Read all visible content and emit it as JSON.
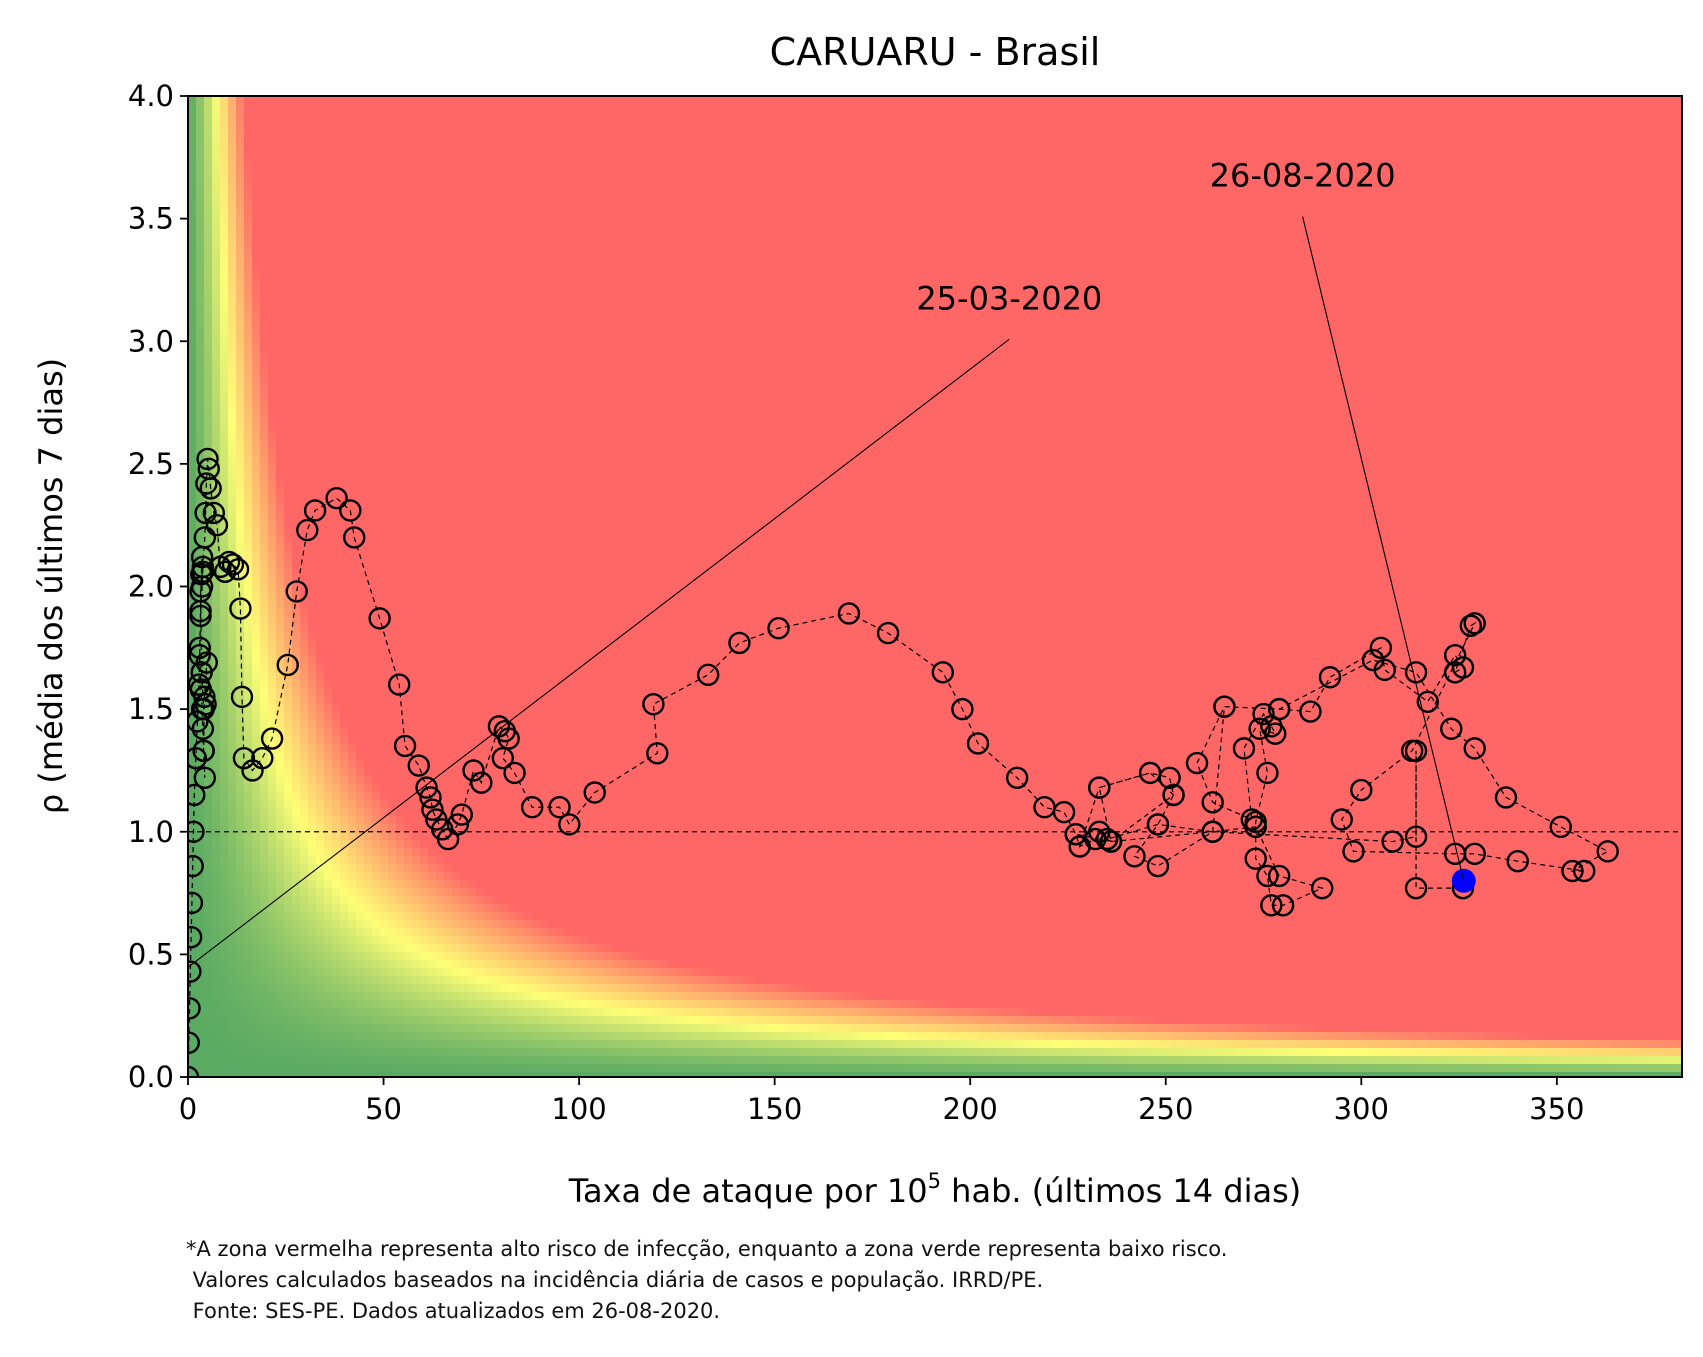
{
  "chart_data": {
    "type": "scatter",
    "title": "CARUARU - Brasil",
    "xlabel": {
      "pre": "Taxa de ataque por 10",
      "sup": "5",
      "post": " hab. (últimos 14 dias)"
    },
    "ylabel": "ρ (média dos últimos 7 dias)",
    "xlim": [
      0,
      382
    ],
    "ylim": [
      0,
      4
    ],
    "xticks": [
      0,
      50,
      100,
      150,
      200,
      250,
      300,
      350
    ],
    "yticks": [
      0.0,
      0.5,
      1.0,
      1.5,
      2.0,
      2.5,
      3.0,
      3.5,
      4.0
    ],
    "reference_line_y": 1.0,
    "colors": {
      "high_risk": "#ff6666",
      "mid": "#ffff77",
      "low_risk": "#5aaa63",
      "marker_edge": "#000000",
      "current": "#0000ff"
    },
    "annotations": [
      {
        "text": "25-03-2020",
        "point": [
          0.2,
          0.45
        ],
        "label_at": [
          210,
          3.0
        ]
      },
      {
        "text": "26-08-2020",
        "point": [
          326.2,
          0.8
        ],
        "label_at": [
          285,
          3.5
        ]
      }
    ],
    "current_point": {
      "date": "26-08-2020",
      "x": 326.2,
      "y": 0.8
    },
    "series": [
      {
        "values": [
          [
            0,
            0.0
          ],
          [
            0.2,
            0.14
          ],
          [
            0.4,
            0.28
          ],
          [
            0.6,
            0.43
          ],
          [
            0.8,
            0.57
          ],
          [
            1.0,
            0.71
          ],
          [
            1.2,
            0.86
          ],
          [
            1.4,
            1.0
          ],
          [
            1.6,
            1.15
          ],
          [
            2.0,
            1.3
          ],
          [
            2.4,
            1.45
          ],
          [
            2.8,
            1.6
          ],
          [
            3.0,
            1.75
          ],
          [
            3.2,
            1.9
          ],
          [
            3.4,
            2.05
          ],
          [
            3.6,
            2.12
          ],
          [
            3.8,
            2.06
          ],
          [
            3.6,
            2.0
          ],
          [
            3.2,
            1.88
          ],
          [
            3.0,
            1.72
          ],
          [
            3.3,
            1.58
          ],
          [
            3.6,
            1.5
          ],
          [
            3.8,
            1.42
          ],
          [
            4.0,
            1.33
          ],
          [
            4.3,
            1.22
          ],
          [
            4.0,
            1.33
          ],
          [
            4.2,
            1.55
          ],
          [
            4.8,
            1.69
          ],
          [
            4.5,
            1.52
          ],
          [
            4.0,
            1.5
          ],
          [
            3.5,
            1.65
          ],
          [
            3.2,
            1.98
          ],
          [
            3.8,
            2.08
          ],
          [
            4.3,
            2.2
          ],
          [
            4.5,
            2.3
          ],
          [
            4.7,
            2.42
          ],
          [
            5.0,
            2.52
          ],
          [
            5.3,
            2.48
          ],
          [
            5.8,
            2.4
          ],
          [
            6.6,
            2.3
          ],
          [
            7.4,
            2.25
          ],
          [
            8.3,
            2.08
          ],
          [
            9.5,
            2.06
          ],
          [
            10.5,
            2.1
          ],
          [
            11.5,
            2.09
          ],
          [
            12.8,
            2.07
          ],
          [
            13.4,
            1.91
          ],
          [
            13.8,
            1.55
          ],
          [
            14.3,
            1.3
          ],
          [
            16.5,
            1.25
          ],
          [
            19.0,
            1.3
          ],
          [
            21.5,
            1.38
          ],
          [
            25.5,
            1.68
          ],
          [
            27.8,
            1.98
          ],
          [
            30.5,
            2.23
          ],
          [
            32.5,
            2.31
          ],
          [
            38.0,
            2.36
          ],
          [
            41.5,
            2.31
          ],
          [
            42.5,
            2.2
          ],
          [
            49.0,
            1.87
          ],
          [
            54.0,
            1.6
          ],
          [
            55.5,
            1.35
          ],
          [
            59.0,
            1.27
          ],
          [
            61.0,
            1.18
          ],
          [
            62.0,
            1.14
          ],
          [
            62.5,
            1.09
          ],
          [
            63.5,
            1.05
          ],
          [
            65.0,
            1.01
          ],
          [
            66.5,
            0.97
          ],
          [
            69.0,
            1.03
          ],
          [
            70.0,
            1.07
          ],
          [
            73.0,
            1.25
          ],
          [
            75.0,
            1.2
          ],
          [
            79.5,
            1.43
          ],
          [
            81.0,
            1.41
          ],
          [
            82.0,
            1.38
          ],
          [
            80.5,
            1.3
          ],
          [
            83.5,
            1.24
          ],
          [
            88.0,
            1.1
          ],
          [
            95.0,
            1.1
          ],
          [
            97.5,
            1.03
          ],
          [
            104.0,
            1.16
          ],
          [
            120.0,
            1.32
          ],
          [
            119.0,
            1.52
          ],
          [
            133.0,
            1.64
          ],
          [
            141.0,
            1.77
          ],
          [
            151.0,
            1.83
          ],
          [
            169.0,
            1.89
          ],
          [
            179.0,
            1.81
          ],
          [
            193.0,
            1.65
          ],
          [
            198.0,
            1.5
          ],
          [
            202.0,
            1.36
          ],
          [
            212.0,
            1.22
          ],
          [
            219.0,
            1.1
          ],
          [
            224.0,
            1.08
          ],
          [
            227.0,
            0.99
          ],
          [
            228.0,
            0.94
          ],
          [
            232.0,
            0.97
          ],
          [
            233.0,
            1.0
          ],
          [
            235.0,
            0.97
          ],
          [
            236.0,
            0.96
          ],
          [
            233.0,
            1.18
          ],
          [
            246.0,
            1.24
          ],
          [
            251.0,
            1.22
          ],
          [
            252.0,
            1.15
          ],
          [
            248.0,
            1.03
          ],
          [
            242.0,
            0.9
          ],
          [
            248.0,
            0.86
          ],
          [
            262.0,
            1.0
          ],
          [
            265.0,
            1.51
          ],
          [
            279.0,
            1.5
          ],
          [
            287.0,
            1.49
          ],
          [
            292.0,
            1.63
          ],
          [
            305.0,
            1.75
          ],
          [
            306.0,
            1.66
          ],
          [
            317.0,
            1.53
          ],
          [
            324.0,
            1.72
          ],
          [
            326.0,
            1.67
          ],
          [
            324.0,
            1.65
          ],
          [
            328.0,
            1.84
          ],
          [
            329.0,
            1.85
          ],
          [
            313.0,
            1.33
          ],
          [
            300.0,
            1.17
          ],
          [
            295.0,
            1.05
          ],
          [
            298.0,
            0.92
          ],
          [
            324.0,
            0.91
          ],
          [
            329.0,
            0.91
          ],
          [
            340.0,
            0.88
          ],
          [
            357.0,
            0.84
          ],
          [
            354.0,
            0.84
          ],
          [
            363.0,
            0.92
          ],
          [
            351.0,
            1.02
          ],
          [
            337.0,
            1.14
          ],
          [
            329.0,
            1.34
          ],
          [
            323.0,
            1.42
          ],
          [
            314.0,
            1.65
          ],
          [
            303.0,
            1.7
          ],
          [
            279.0,
            1.5
          ],
          [
            265.0,
            1.51
          ],
          [
            258.0,
            1.28
          ],
          [
            262.0,
            1.12
          ],
          [
            272.0,
            1.05
          ],
          [
            270.0,
            1.34
          ],
          [
            275.0,
            1.48
          ],
          [
            277.0,
            1.43
          ],
          [
            278.0,
            1.4
          ],
          [
            274.0,
            1.42
          ],
          [
            276.0,
            1.24
          ],
          [
            273.0,
            1.04
          ],
          [
            273.0,
            1.02
          ],
          [
            273.0,
            0.89
          ],
          [
            276.0,
            0.82
          ],
          [
            277.0,
            0.7
          ],
          [
            280.0,
            0.7
          ],
          [
            290.0,
            0.77
          ],
          [
            279.0,
            0.82
          ],
          [
            273.0,
            1.02
          ],
          [
            262.0,
            1.0
          ],
          [
            248.0,
            1.03
          ],
          [
            235.0,
            0.97
          ],
          [
            236.0,
            0.96
          ],
          [
            252.0,
            1.15
          ],
          [
            246.0,
            1.24
          ],
          [
            233.0,
            1.18
          ],
          [
            228.0,
            0.94
          ],
          [
            227.0,
            0.99
          ],
          [
            236.0,
            0.96
          ],
          [
            262.0,
            1.0
          ],
          [
            308.0,
            0.96
          ],
          [
            314.0,
            0.98
          ],
          [
            314.0,
            1.33
          ],
          [
            314.0,
            0.77
          ],
          [
            326.0,
            0.77
          ]
        ]
      }
    ]
  },
  "footnote": [
    "*A zona vermelha representa alto risco de infecção, enquanto a zona verde representa baixo risco.",
    " Valores calculados baseados na incidência diária de casos e população. IRRD/PE.",
    " Fonte: SES-PE. Dados atualizados em 26-08-2020."
  ]
}
